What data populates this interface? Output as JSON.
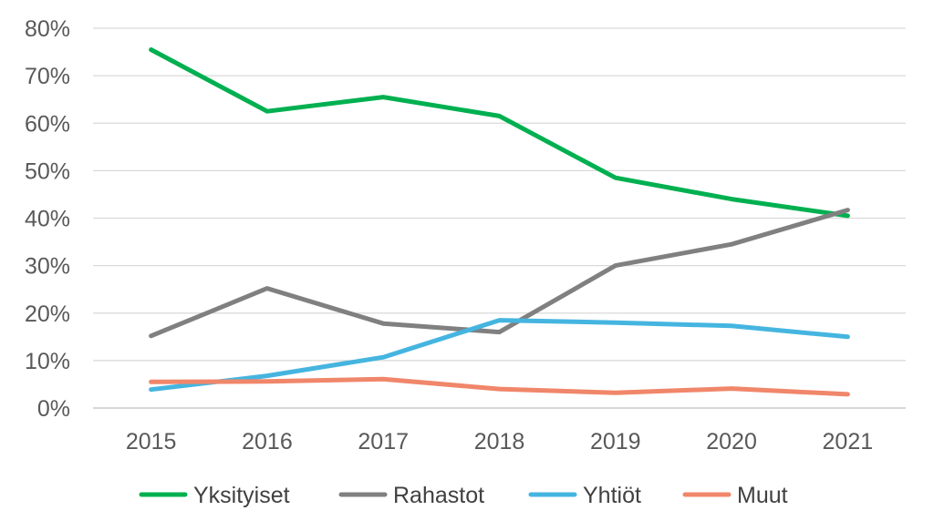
{
  "chart_data": {
    "type": "line",
    "categories": [
      "2015",
      "2016",
      "2017",
      "2018",
      "2019",
      "2020",
      "2021"
    ],
    "y_ticks": [
      "0%",
      "10%",
      "20%",
      "30%",
      "40%",
      "50%",
      "60%",
      "70%",
      "80%"
    ],
    "ylim": [
      0,
      80
    ],
    "y_unit": "%",
    "grid": true,
    "legend_position": "bottom",
    "series": [
      {
        "name": "Yksityiset",
        "color": "#00b050",
        "values": [
          75.5,
          62.5,
          65.5,
          61.5,
          48.5,
          44,
          40.5
        ]
      },
      {
        "name": "Rahastot",
        "color": "#808080",
        "values": [
          15.2,
          25.2,
          17.8,
          16,
          30,
          34.5,
          41.7
        ]
      },
      {
        "name": "Yhtiöt",
        "color": "#45b5e0",
        "values": [
          3.9,
          6.8,
          10.7,
          18.5,
          18,
          17.3,
          15
        ]
      },
      {
        "name": "Muut",
        "color": "#f0866a",
        "values": [
          5.5,
          5.6,
          6.1,
          4,
          3.2,
          4.1,
          2.9
        ]
      }
    ]
  }
}
